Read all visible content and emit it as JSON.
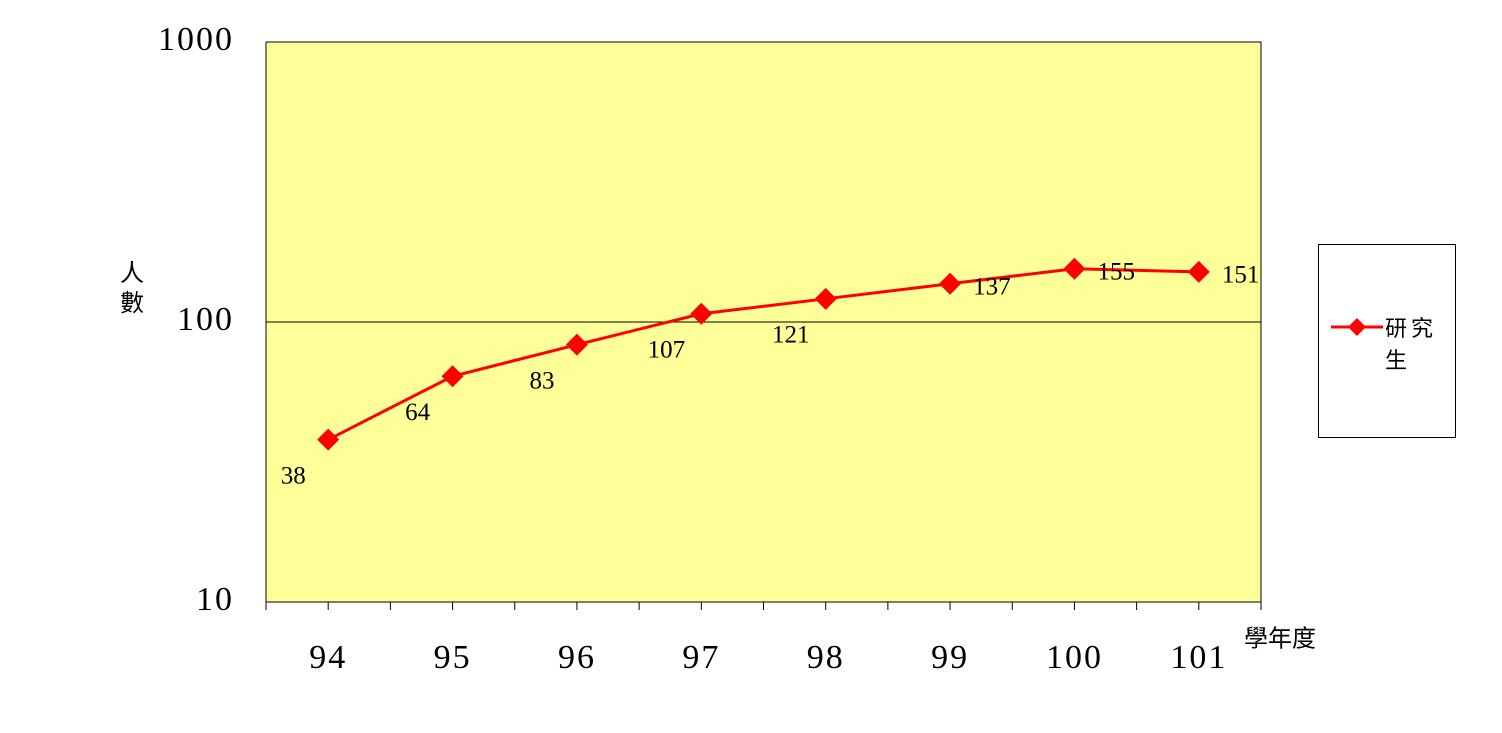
{
  "chart_data": {
    "type": "line",
    "categories": [
      "94",
      "95",
      "96",
      "97",
      "98",
      "99",
      "100",
      "101"
    ],
    "series": [
      {
        "name": "研究生",
        "color": "#ff0000",
        "values": [
          38,
          64,
          83,
          107,
          121,
          137,
          155,
          151
        ]
      }
    ],
    "ylim": [
      10,
      1000
    ],
    "yticks": [
      10,
      100,
      1000
    ],
    "log_scale": true,
    "grid": true,
    "y_label": "人數",
    "x_label": "學年度",
    "plot_background": "#ffff99",
    "legend": "right"
  }
}
